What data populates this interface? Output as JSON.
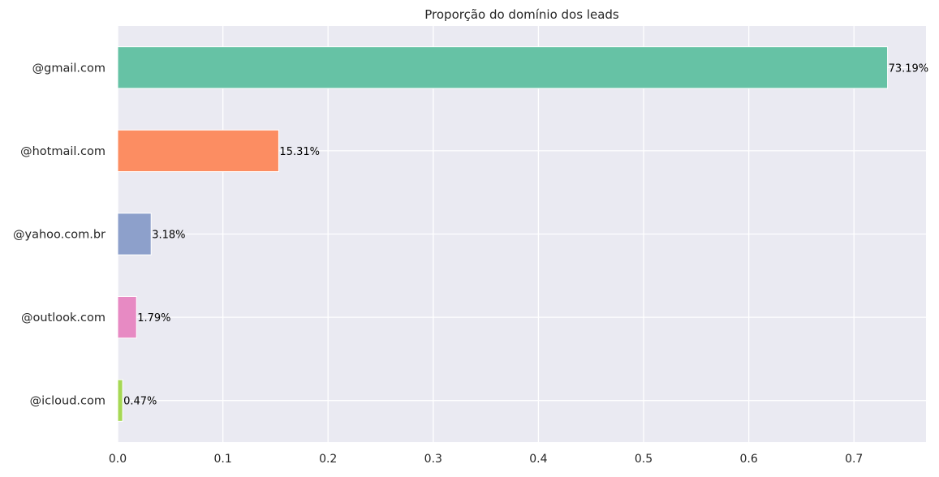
{
  "chart_data": {
    "type": "bar",
    "orientation": "horizontal",
    "title": "Proporção do domínio dos leads",
    "xlabel": "",
    "ylabel": "",
    "categories": [
      "@gmail.com",
      "@hotmail.com",
      "@yahoo.com.br",
      "@outlook.com",
      "@icloud.com"
    ],
    "values": [
      0.7319,
      0.1531,
      0.0318,
      0.0179,
      0.0047
    ],
    "value_labels": [
      "73.19%",
      "15.31%",
      "3.18%",
      "1.79%",
      "0.47%"
    ],
    "colors": [
      "#66c2a5",
      "#fc8d62",
      "#8da0cb",
      "#e78ac3",
      "#a6d854"
    ],
    "xlim": [
      0,
      0.7685
    ],
    "xticks": [
      0.0,
      0.1,
      0.2,
      0.3,
      0.4,
      0.5,
      0.6,
      0.7
    ],
    "xtick_labels": [
      "0.0",
      "0.1",
      "0.2",
      "0.3",
      "0.4",
      "0.5",
      "0.6",
      "0.7"
    ],
    "grid": true,
    "background": "#eaeaf2",
    "grid_color": "#ffffff"
  }
}
